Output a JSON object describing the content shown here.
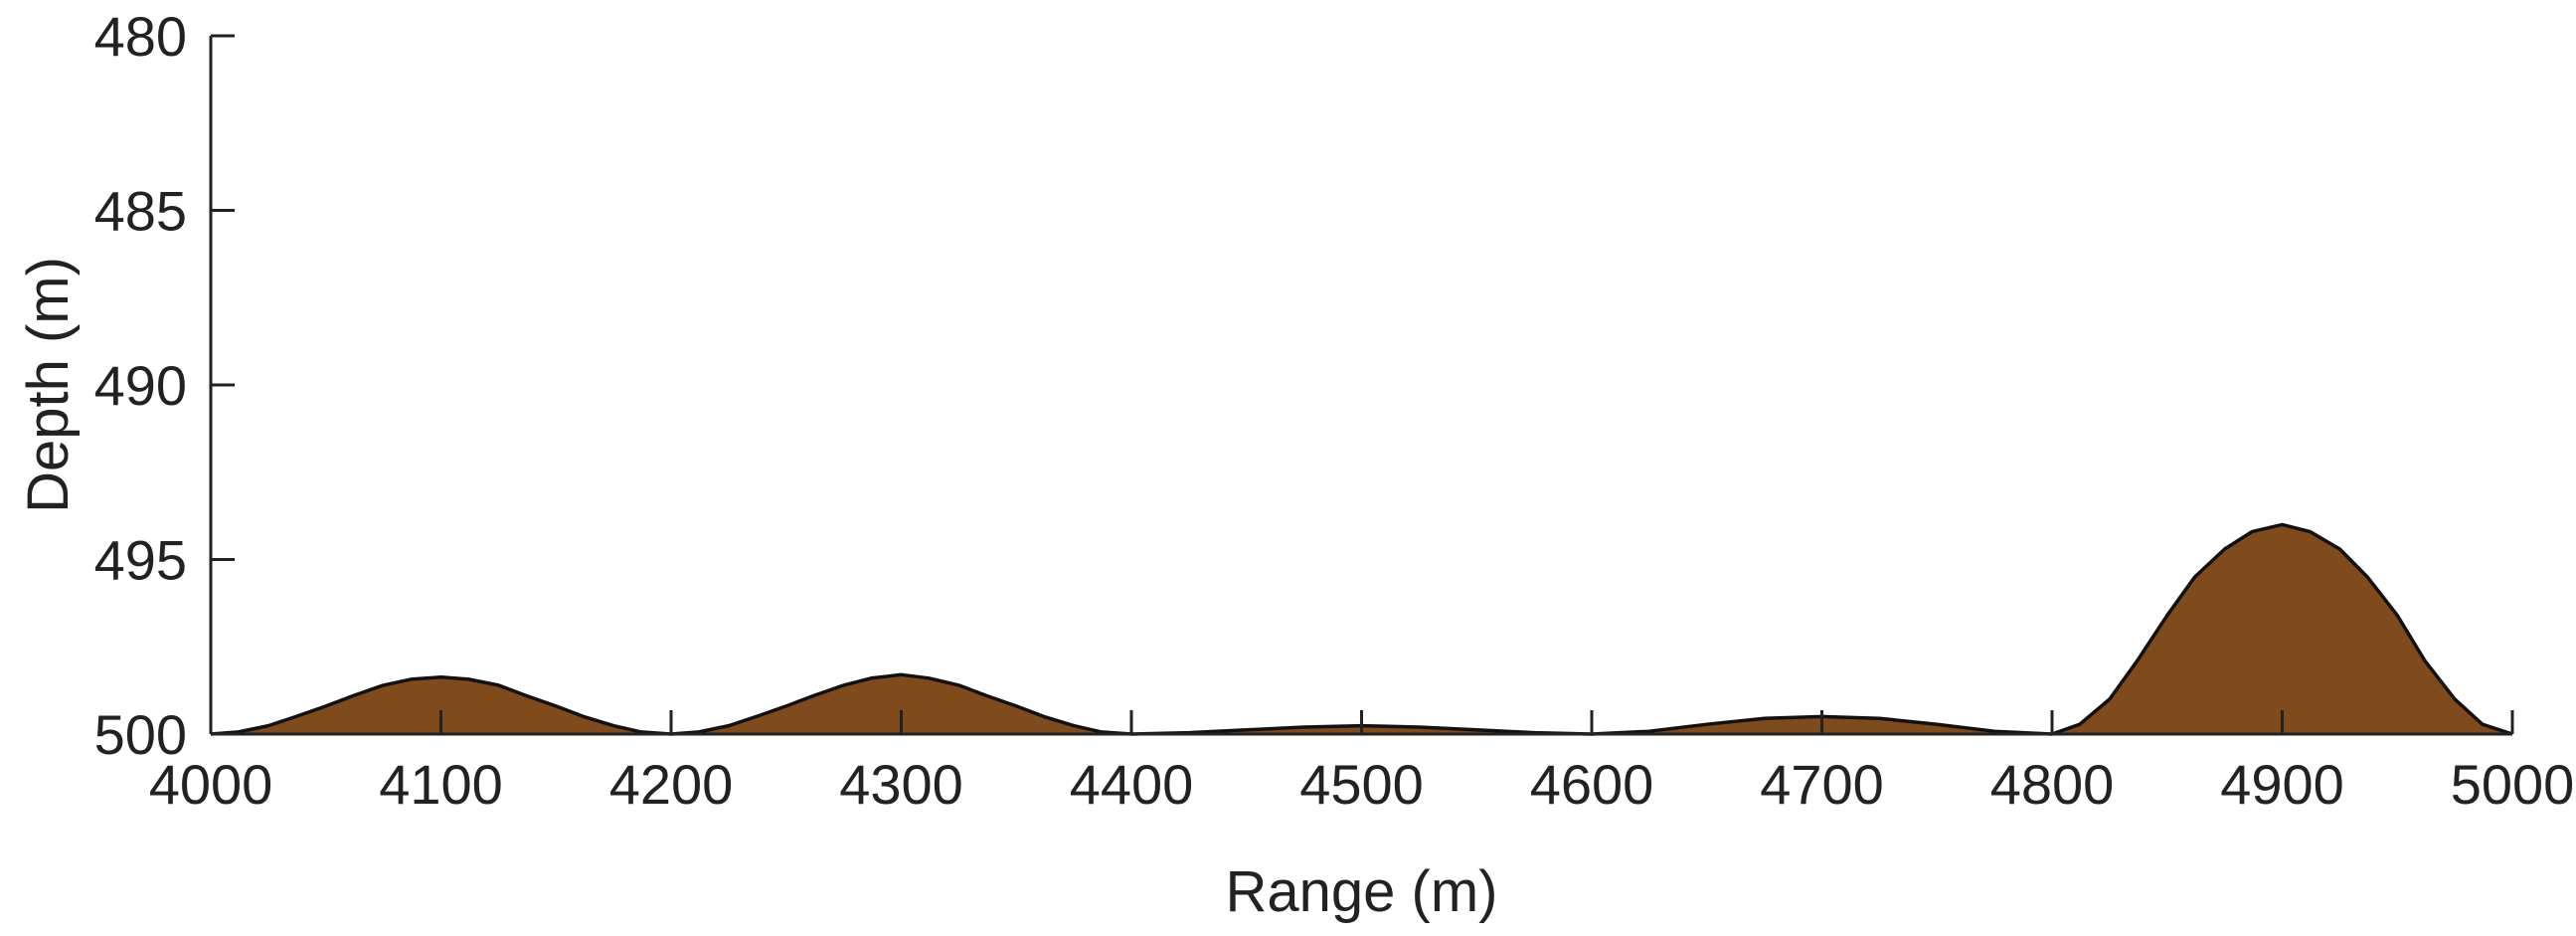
{
  "chart_data": {
    "type": "area",
    "title": "",
    "xlabel": "Range (m)",
    "ylabel": "Depth (m)",
    "xlim": [
      4000,
      5000
    ],
    "ylim": [
      480,
      500
    ],
    "y_reversed": true,
    "grid": false,
    "legend": "none",
    "x_ticks": [
      "4000",
      "4100",
      "4200",
      "4300",
      "4400",
      "4500",
      "4600",
      "4700",
      "4800",
      "4900",
      "5000"
    ],
    "y_ticks": [
      "480",
      "485",
      "490",
      "495",
      "500"
    ],
    "fill_color": "#7f4a1c",
    "line_color": "#111111",
    "series": [
      {
        "x": [
          4000,
          4012,
          4025,
          4037,
          4050,
          4062,
          4075,
          4087,
          4100,
          4112,
          4125,
          4137,
          4150,
          4162,
          4175,
          4187,
          4200,
          4212,
          4225,
          4237,
          4250,
          4262,
          4275,
          4287,
          4300,
          4312,
          4325,
          4337,
          4350,
          4362,
          4375,
          4387,
          4400,
          4425,
          4450,
          4475,
          4500,
          4525,
          4550,
          4575,
          4600,
          4625,
          4650,
          4675,
          4700,
          4725,
          4750,
          4775,
          4800,
          4812,
          4825,
          4837,
          4850,
          4862,
          4875,
          4887,
          4900,
          4912,
          4925,
          4937,
          4950,
          4962,
          4975,
          4987,
          5000
        ],
        "y": [
          500.0,
          499.94,
          499.76,
          499.5,
          499.2,
          498.9,
          498.6,
          498.43,
          498.37,
          498.43,
          498.6,
          498.9,
          499.2,
          499.5,
          499.76,
          499.94,
          500.0,
          499.94,
          499.76,
          499.5,
          499.2,
          498.9,
          498.6,
          498.4,
          498.3,
          498.4,
          498.6,
          498.9,
          499.2,
          499.5,
          499.76,
          499.94,
          500.0,
          499.96,
          499.88,
          499.8,
          499.76,
          499.8,
          499.88,
          499.96,
          500.0,
          499.92,
          499.72,
          499.55,
          499.5,
          499.55,
          499.72,
          499.92,
          500.0,
          499.72,
          499.0,
          497.9,
          496.6,
          495.5,
          494.7,
          494.2,
          494.0,
          494.2,
          494.7,
          495.5,
          496.6,
          497.9,
          499.0,
          499.72,
          500.0
        ]
      }
    ]
  }
}
